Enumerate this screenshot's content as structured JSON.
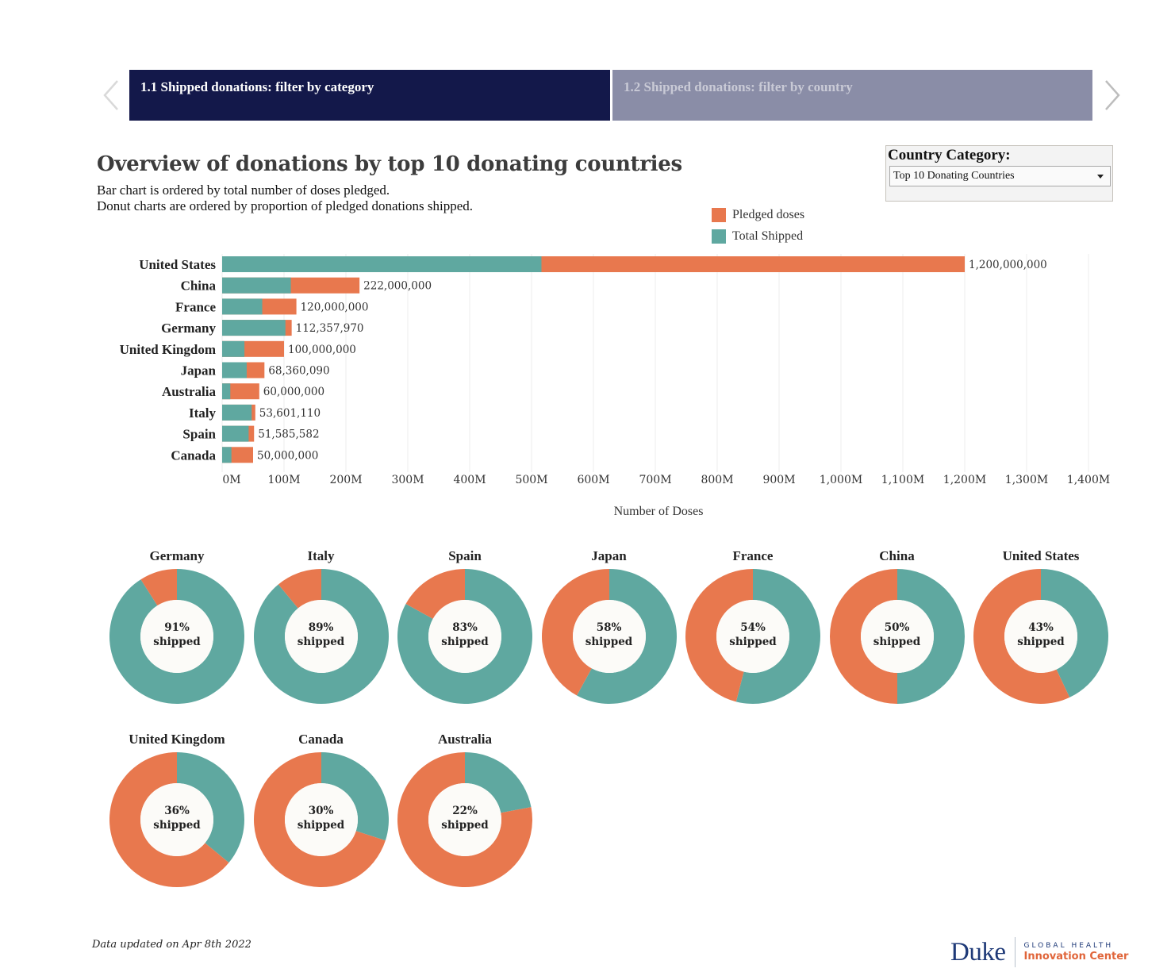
{
  "story": {
    "tabs": [
      {
        "label": "1.1 Shipped donations: filter by category",
        "active": true
      },
      {
        "label": "1.2 Shipped donations: filter by country",
        "active": false
      }
    ]
  },
  "header": {
    "title": "Overview of donations by top 10 donating countries",
    "subtitle_1": "Bar chart is ordered by total number of doses pledged.",
    "subtitle_2": "Donut charts are ordered by proportion of pledged donations shipped."
  },
  "filter": {
    "label": "Country Category:",
    "value": "Top 10 Donating Countries"
  },
  "colors": {
    "pledged": "#e8784e",
    "shipped": "#5fa8a0",
    "donut_hole": "#fcfbf8",
    "nav_active": "#13184a",
    "nav_inactive": "#8a8da7"
  },
  "chart_data": [
    {
      "type": "bar",
      "orientation": "horizontal",
      "stacked": "overlay",
      "title": "Overview of donations by top 10 donating countries",
      "xlabel": "Number of Doses",
      "ylabel": "",
      "xlim": [
        0,
        1400000000
      ],
      "grid": true,
      "legend": {
        "position": "top-right",
        "entries": [
          "Pledged doses",
          "Total Shipped"
        ]
      },
      "categories": [
        "United States",
        "China",
        "France",
        "Germany",
        "United Kingdom",
        "Japan",
        "Australia",
        "Italy",
        "Spain",
        "Canada"
      ],
      "series": [
        {
          "name": "Pledged doses",
          "values": [
            1200000000,
            222000000,
            120000000,
            112357970,
            100000000,
            68360090,
            60000000,
            53601110,
            51585582,
            50000000
          ]
        },
        {
          "name": "Total Shipped",
          "values": [
            516000000,
            111000000,
            64800000,
            102245000,
            36000000,
            39650000,
            13200000,
            47705000,
            42816000,
            15000000
          ]
        }
      ],
      "value_labels": [
        "1,200,000,000",
        "222,000,000",
        "120,000,000",
        "112,357,970",
        "100,000,000",
        "68,360,090",
        "60,000,000",
        "53,601,110",
        "51,585,582",
        "50,000,000"
      ],
      "ticks": [
        0,
        100000000,
        200000000,
        300000000,
        400000000,
        500000000,
        600000000,
        700000000,
        800000000,
        900000000,
        1000000000,
        1100000000,
        1200000000,
        1300000000,
        1400000000
      ],
      "tick_labels": [
        "0M",
        "100M",
        "200M",
        "300M",
        "400M",
        "500M",
        "600M",
        "700M",
        "800M",
        "900M",
        "1,000M",
        "1,100M",
        "1,200M",
        "1,300M",
        "1,400M"
      ]
    },
    {
      "type": "pie",
      "variant": "donut",
      "title": "Proportion of pledged donations shipped",
      "categories": [
        "Germany",
        "Italy",
        "Spain",
        "Japan",
        "France",
        "China",
        "United States",
        "United Kingdom",
        "Canada",
        "Australia"
      ],
      "shipped_pct": [
        91,
        89,
        83,
        58,
        54,
        50,
        43,
        36,
        30,
        22
      ],
      "center_labels": [
        "91%",
        "89%",
        "83%",
        "58%",
        "54%",
        "50%",
        "43%",
        "36%",
        "30%",
        "22%"
      ],
      "center_suffix": "shipped"
    }
  ],
  "footer": {
    "note": "Data updated on Apr 8th 2022",
    "logo_main": "Duke",
    "logo_top": "GLOBAL HEALTH",
    "logo_bottom": "Innovation Center"
  }
}
